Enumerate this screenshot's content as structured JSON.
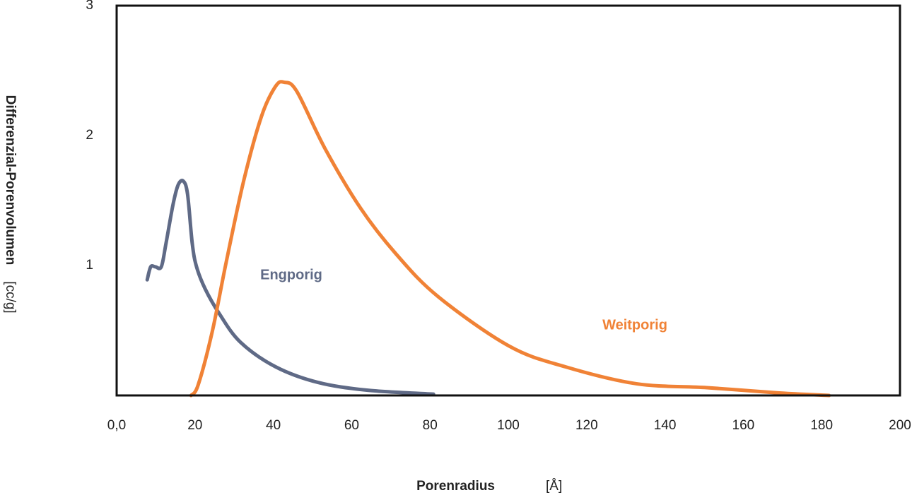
{
  "chart_data": {
    "type": "line",
    "x_label": "Porenradius",
    "x_unit": "[Å]",
    "y_label": "Differenzial-Porenvolumen",
    "y_unit": "[cc/g]",
    "xlim": [
      0,
      200
    ],
    "xticks": [
      {
        "value": 0,
        "label": "0,0"
      },
      20,
      40,
      60,
      80,
      100,
      120,
      140,
      160,
      180,
      200
    ],
    "ylim": [
      0,
      3
    ],
    "yticks": [
      1,
      2,
      3
    ],
    "series": [
      {
        "name": "Engporig",
        "color": "#5f6a86",
        "x": [
          7.8,
          8.7,
          9.9,
          11.4,
          12.6,
          14.4,
          15.7,
          17.0,
          18.1,
          19.3,
          20.4,
          22.6,
          26.2,
          31.6,
          40.6,
          51.4,
          64.1,
          80.9
        ],
        "values": [
          0.89,
          0.99,
          0.99,
          0.99,
          1.17,
          1.47,
          1.62,
          1.65,
          1.55,
          1.17,
          0.99,
          0.82,
          0.63,
          0.41,
          0.22,
          0.1,
          0.04,
          0.01
        ]
      },
      {
        "name": "Weitporig",
        "color": "#f08236",
        "x": [
          19.0,
          20.8,
          24.4,
          28.0,
          32.5,
          37.0,
          40.6,
          42.8,
          46.0,
          53.2,
          62.3,
          71.3,
          82.1,
          100.2,
          114.6,
          132.7,
          150.7,
          168.8,
          181.9
        ],
        "values": [
          0,
          0.08,
          0.49,
          1.03,
          1.66,
          2.15,
          2.38,
          2.41,
          2.34,
          1.9,
          1.44,
          1.09,
          0.76,
          0.38,
          0.22,
          0.09,
          0.06,
          0.02,
          0
        ]
      }
    ]
  }
}
